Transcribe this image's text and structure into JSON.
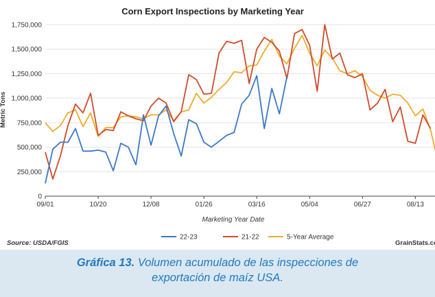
{
  "chart_data": {
    "type": "line",
    "title": "Corn Export Inspections by Marketing Year",
    "xlabel": "Marketing Year Date",
    "ylabel": "Metric Tons",
    "ylim": [
      0,
      1750000
    ],
    "yticks": [
      0,
      250000,
      500000,
      750000,
      1000000,
      1250000,
      1500000,
      1750000
    ],
    "ytick_labels": [
      "0",
      "250,000",
      "500,000",
      "750,000",
      "1,000,000",
      "1,250,000",
      "1,500,000",
      "1,750,000"
    ],
    "xticks": [
      {
        "week": 0,
        "label": "09/01"
      },
      {
        "week": 7,
        "label": "10/20"
      },
      {
        "week": 14,
        "label": "12/08"
      },
      {
        "week": 21,
        "label": "01/26"
      },
      {
        "week": 28,
        "label": "03/16"
      },
      {
        "week": 35,
        "label": "05/04"
      },
      {
        "week": 42,
        "label": "06/27"
      },
      {
        "week": 49,
        "label": "08/13"
      }
    ],
    "x_week_range": [
      0,
      51.6
    ],
    "grid": "horizontal",
    "legend_position": "bottom",
    "series": [
      {
        "name": "22-23",
        "color": "#3a78c8",
        "values": [
          130000,
          480000,
          550000,
          550000,
          690000,
          460000,
          460000,
          470000,
          450000,
          260000,
          540000,
          500000,
          320000,
          830000,
          520000,
          820000,
          920000,
          640000,
          410000,
          780000,
          740000,
          550000,
          500000,
          560000,
          620000,
          650000,
          940000,
          1030000,
          1230000,
          690000,
          1100000,
          840000,
          1220000
        ]
      },
      {
        "name": "21-22",
        "color": "#d04a28",
        "values": [
          450000,
          175000,
          410000,
          720000,
          940000,
          850000,
          1050000,
          620000,
          680000,
          670000,
          860000,
          820000,
          790000,
          770000,
          920000,
          1000000,
          950000,
          760000,
          860000,
          1240000,
          1190000,
          1040000,
          1050000,
          1460000,
          1580000,
          1560000,
          1590000,
          1150000,
          1500000,
          1620000,
          1570000,
          1480000,
          1200000,
          1660000,
          1700000,
          1540000,
          1070000,
          1750000,
          1400000,
          1460000,
          1240000,
          1210000,
          1250000,
          880000,
          950000,
          1090000,
          760000,
          910000,
          560000,
          540000,
          830000,
          690000
        ]
      },
      {
        "name": "5-Year Average",
        "color": "#eeab2a",
        "values": [
          750000,
          660000,
          720000,
          850000,
          880000,
          710000,
          850000,
          610000,
          700000,
          700000,
          810000,
          820000,
          810000,
          790000,
          830000,
          830000,
          880000,
          770000,
          860000,
          880000,
          1050000,
          950000,
          1010000,
          1090000,
          1160000,
          1270000,
          1260000,
          1330000,
          1340000,
          1480000,
          1600000,
          1430000,
          1350000,
          1510000,
          1640000,
          1460000,
          1330000,
          1490000,
          1410000,
          1280000,
          1250000,
          1280000,
          1220000,
          1080000,
          1030000,
          1000000,
          1040000,
          1030000,
          950000,
          820000,
          890000,
          680000,
          350000
        ]
      }
    ],
    "source": "Source: USDA/FGIS",
    "credit": "GrainStats.com"
  },
  "caption": {
    "label": "Gráfica 13.",
    "line1": "Volumen acumulado de las inspecciones de",
    "line2": "exportación de maíz USA."
  }
}
